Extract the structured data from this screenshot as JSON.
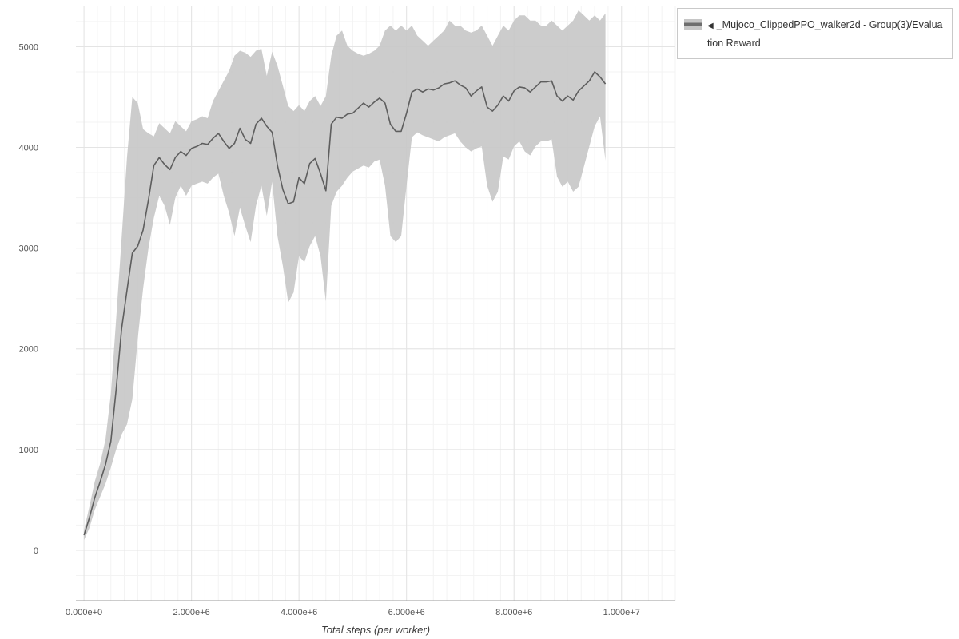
{
  "legend": {
    "arrow": "◀",
    "label": "_Mujoco_ClippedPPO_walker2d - Group(3)/Evaluation Reward",
    "band_color": "#c6c6c6",
    "line_color": "#6e6e6e"
  },
  "chart_data": {
    "type": "line",
    "title": "",
    "xlabel": "Total steps (per worker)",
    "ylabel": "",
    "legend_position": "top-right",
    "grid": true,
    "x_unit_multiplier": 1000000,
    "xlim": [
      -150000,
      11000000
    ],
    "ylim": [
      -500,
      5400
    ],
    "minor_grid": {
      "x_step": 250000,
      "y_step": 250
    },
    "grid_minor_color": "#f3f3f3",
    "grid_major_color": "#e4e4e4",
    "axis_line_color": "#9a9a9a",
    "tick_label_color": "#555555",
    "x_ticks": [
      {
        "value": 0,
        "label": "0.000e+0"
      },
      {
        "value": 2000000,
        "label": "2.000e+6"
      },
      {
        "value": 4000000,
        "label": "4.000e+6"
      },
      {
        "value": 6000000,
        "label": "6.000e+6"
      },
      {
        "value": 8000000,
        "label": "8.000e+6"
      },
      {
        "value": 10000000,
        "label": "1.000e+7"
      }
    ],
    "y_ticks": [
      {
        "value": 0,
        "label": "0"
      },
      {
        "value": 1000,
        "label": "1000"
      },
      {
        "value": 2000,
        "label": "2000"
      },
      {
        "value": 3000,
        "label": "3000"
      },
      {
        "value": 4000,
        "label": "4000"
      },
      {
        "value": 5000,
        "label": "5000"
      }
    ],
    "series": [
      {
        "name": "_Mujoco_ClippedPPO_walker2d - Group(3)/Evaluation Reward",
        "style": "mean-with-band",
        "band_color": "#c7c7c7",
        "band_opacity": 0.9,
        "line_color": "#5e5e5e",
        "line_width": 1.6,
        "x_e6": [
          0,
          0.1,
          0.2,
          0.3,
          0.4,
          0.5,
          0.6,
          0.7,
          0.8,
          0.9,
          1,
          1.1,
          1.2,
          1.3,
          1.4,
          1.5,
          1.6,
          1.7,
          1.8,
          1.9,
          2,
          2.1,
          2.2,
          2.3,
          2.4,
          2.5,
          2.6,
          2.7,
          2.8,
          2.9,
          3,
          3.1,
          3.2,
          3.3,
          3.4,
          3.5,
          3.6,
          3.7,
          3.8,
          3.9,
          4,
          4.1,
          4.2,
          4.3,
          4.4,
          4.5,
          4.6,
          4.7,
          4.8,
          4.9,
          5,
          5.1,
          5.2,
          5.3,
          5.4,
          5.5,
          5.6,
          5.7,
          5.8,
          5.9,
          6,
          6.1,
          6.2,
          6.3,
          6.4,
          6.5,
          6.6,
          6.7,
          6.8,
          6.9,
          7,
          7.1,
          7.2,
          7.3,
          7.4,
          7.5,
          7.6,
          7.7,
          7.8,
          7.9,
          8,
          8.1,
          8.2,
          8.3,
          8.4,
          8.5,
          8.6,
          8.7,
          8.8,
          8.9,
          9,
          9.1,
          9.2,
          9.3,
          9.4,
          9.5,
          9.6,
          9.7
        ],
        "mean": [
          150,
          320,
          520,
          680,
          850,
          1080,
          1600,
          2200,
          2580,
          2950,
          3020,
          3180,
          3480,
          3820,
          3900,
          3830,
          3780,
          3900,
          3960,
          3920,
          3990,
          4010,
          4040,
          4030,
          4090,
          4140,
          4060,
          3990,
          4040,
          4190,
          4080,
          4040,
          4230,
          4290,
          4210,
          4150,
          3820,
          3580,
          3440,
          3460,
          3700,
          3640,
          3840,
          3890,
          3740,
          3570,
          4230,
          4300,
          4290,
          4330,
          4340,
          4390,
          4440,
          4400,
          4450,
          4490,
          4440,
          4230,
          4160,
          4160,
          4340,
          4550,
          4580,
          4550,
          4580,
          4570,
          4590,
          4630,
          4640,
          4660,
          4620,
          4590,
          4510,
          4560,
          4600,
          4400,
          4360,
          4420,
          4510,
          4460,
          4560,
          4600,
          4590,
          4550,
          4600,
          4650,
          4650,
          4660,
          4510,
          4460,
          4510,
          4470,
          4560,
          4610,
          4660,
          4750,
          4700,
          4630
        ],
        "lower": [
          100,
          220,
          400,
          530,
          660,
          820,
          1000,
          1150,
          1250,
          1500,
          2100,
          2600,
          3000,
          3300,
          3520,
          3420,
          3230,
          3500,
          3620,
          3520,
          3620,
          3640,
          3660,
          3640,
          3700,
          3740,
          3520,
          3350,
          3120,
          3400,
          3220,
          3060,
          3420,
          3620,
          3320,
          3660,
          3120,
          2820,
          2460,
          2560,
          2920,
          2860,
          3020,
          3120,
          2920,
          2470,
          3420,
          3560,
          3620,
          3700,
          3760,
          3790,
          3820,
          3800,
          3860,
          3880,
          3620,
          3120,
          3060,
          3120,
          3620,
          4100,
          4150,
          4120,
          4100,
          4080,
          4060,
          4100,
          4120,
          4140,
          4060,
          4000,
          3960,
          3990,
          4010,
          3620,
          3460,
          3560,
          3910,
          3880,
          4010,
          4060,
          3960,
          3920,
          4010,
          4060,
          4060,
          4080,
          3710,
          3610,
          3660,
          3560,
          3610,
          3810,
          4010,
          4210,
          4310,
          3870
        ],
        "upper": [
          200,
          430,
          680,
          860,
          1100,
          1550,
          2300,
          3100,
          3900,
          4500,
          4440,
          4180,
          4140,
          4110,
          4240,
          4190,
          4140,
          4260,
          4210,
          4160,
          4260,
          4280,
          4310,
          4290,
          4460,
          4560,
          4660,
          4760,
          4910,
          4960,
          4940,
          4900,
          4960,
          4980,
          4710,
          4950,
          4810,
          4610,
          4410,
          4360,
          4420,
          4360,
          4460,
          4510,
          4410,
          4510,
          4910,
          5110,
          5160,
          5010,
          4960,
          4930,
          4910,
          4930,
          4960,
          5010,
          5160,
          5210,
          5160,
          5210,
          5160,
          5210,
          5110,
          5060,
          5010,
          5060,
          5110,
          5160,
          5260,
          5210,
          5210,
          5160,
          5140,
          5160,
          5210,
          5110,
          5010,
          5110,
          5210,
          5160,
          5260,
          5310,
          5310,
          5260,
          5260,
          5210,
          5210,
          5260,
          5210,
          5160,
          5210,
          5260,
          5360,
          5310,
          5260,
          5310,
          5260,
          5330
        ]
      }
    ]
  }
}
